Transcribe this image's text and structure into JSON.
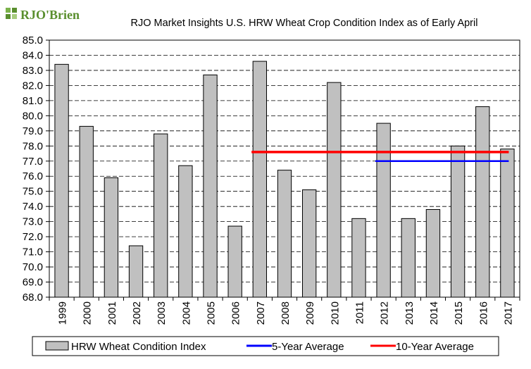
{
  "logo": {
    "text": "RJO'Brien",
    "color": "#5a8f2e"
  },
  "chart_data": {
    "type": "bar",
    "title": "RJO Market Insights U.S. HRW Wheat Crop Condition Index as of Early April",
    "xlabel": "",
    "ylabel": "",
    "categories": [
      "1999",
      "2000",
      "2001",
      "2002",
      "2003",
      "2004",
      "2005",
      "2006",
      "2007",
      "2008",
      "2009",
      "2010",
      "2011",
      "2012",
      "2013",
      "2014",
      "2015",
      "2016",
      "2017"
    ],
    "series": [
      {
        "name": "HRW Wheat Condition Index",
        "color": "#c0c0c0",
        "values": [
          83.4,
          79.3,
          75.9,
          71.4,
          78.8,
          76.7,
          82.7,
          72.7,
          83.6,
          76.4,
          75.1,
          82.2,
          73.2,
          79.5,
          73.2,
          73.8,
          78.0,
          80.6,
          77.8
        ]
      }
    ],
    "reference_lines": [
      {
        "name": "5-Year Average",
        "color": "#0000ff",
        "value": 77.0,
        "from": "2012",
        "to": "2017"
      },
      {
        "name": "10-Year Average",
        "color": "#ff0000",
        "value": 77.6,
        "from": "2007",
        "to": "2017"
      }
    ],
    "ylim": [
      68.0,
      85.0
    ],
    "ytick_step": 1.0,
    "grid": "horizontal-dashed",
    "legend_placement": "bottom"
  }
}
